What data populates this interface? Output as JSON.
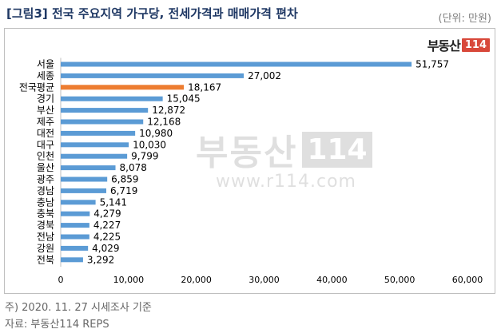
{
  "title": "[그림3] 전국 주요지역 가구당, 전세가격과 매매가격 편차",
  "unit": "(단위: 만원)",
  "logo": {
    "text": "부동산",
    "num": "114"
  },
  "watermark": {
    "text": "부동산",
    "num": "114",
    "url": "www.r114.com"
  },
  "footnotes": [
    "주) 2020. 11. 27 시세조사 기준",
    "자료: 부동산114 REPS"
  ],
  "chart_data": {
    "type": "bar",
    "orientation": "horizontal",
    "categories": [
      "서울",
      "세종",
      "전국평균",
      "경기",
      "부산",
      "제주",
      "대전",
      "대구",
      "인천",
      "울산",
      "광주",
      "경남",
      "충남",
      "충북",
      "경북",
      "전남",
      "강원",
      "전북"
    ],
    "values": [
      51757,
      27002,
      18167,
      15045,
      12872,
      12168,
      10980,
      10030,
      9799,
      8078,
      6859,
      6719,
      5141,
      4279,
      4227,
      4225,
      4029,
      3292
    ],
    "value_labels": [
      "51,757",
      "27,002",
      "18,167",
      "15,045",
      "12,872",
      "12,168",
      "10,980",
      "10,030",
      "9,799",
      "8,078",
      "6,859",
      "6,719",
      "5,141",
      "4,279",
      "4,227",
      "4,225",
      "4,029",
      "3,292"
    ],
    "highlight": "전국평균",
    "colors": {
      "bar": "#5b9bd5",
      "highlight": "#ed7d31"
    },
    "xlim": [
      0,
      60000
    ],
    "xticks": [
      0,
      10000,
      20000,
      30000,
      40000,
      50000,
      60000
    ],
    "xtick_labels": [
      "0",
      "10,000",
      "20,000",
      "30,000",
      "40,000",
      "50,000",
      "60,000"
    ],
    "grid": false,
    "legend": "none"
  }
}
